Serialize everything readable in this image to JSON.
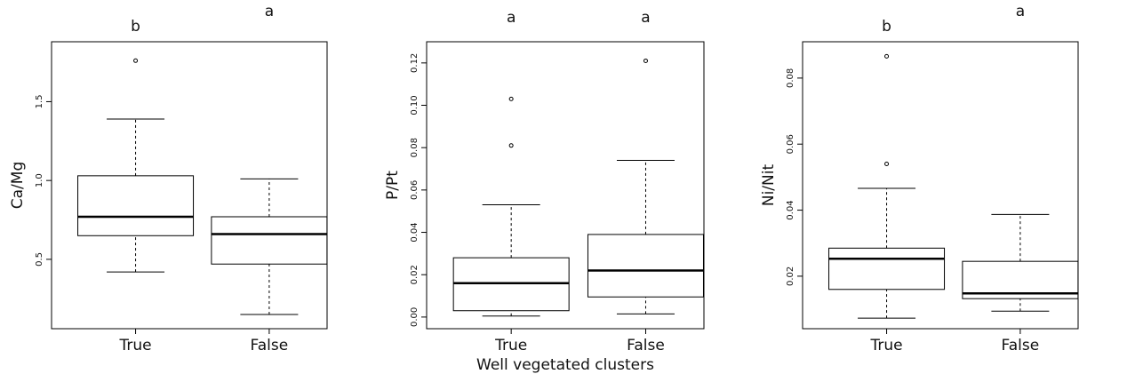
{
  "chart_data": [
    {
      "type": "box",
      "ylabel": "Ca/Mg",
      "categories": [
        "True",
        "False"
      ],
      "annotations": [
        "b",
        "a"
      ],
      "boxes": [
        {
          "min": 0.42,
          "q1": 0.65,
          "median": 0.77,
          "q3": 1.03,
          "max": 1.39,
          "outliers": [
            1.76
          ]
        },
        {
          "min": 0.15,
          "q1": 0.47,
          "median": 0.66,
          "q3": 0.77,
          "max": 1.01,
          "outliers": []
        }
      ],
      "ylim": [
        0.06,
        1.88
      ],
      "yticks": [
        0.5,
        {
          "value": 1,
          "label": "1.0"
        },
        1.5
      ]
    },
    {
      "type": "box",
      "ylabel": "P/Pt",
      "xlabel": "Well vegetated clusters",
      "categories": [
        "True",
        "False"
      ],
      "annotations": [
        "a",
        "a"
      ],
      "boxes": [
        {
          "min": 0.0005,
          "q1": 0.003,
          "median": 0.016,
          "q3": 0.028,
          "max": 0.053,
          "outliers": [
            0.081,
            0.103
          ]
        },
        {
          "min": 0.0015,
          "q1": 0.0095,
          "median": 0.022,
          "q3": 0.039,
          "max": 0.074,
          "outliers": [
            0.121
          ]
        }
      ],
      "ylim": [
        -0.0055,
        0.13
      ],
      "yticks": [
        {
          "value": 0,
          "label": "0.00"
        },
        0.02,
        0.04,
        0.06,
        0.08,
        {
          "value": 0.1,
          "label": "0.10"
        },
        0.12
      ]
    },
    {
      "type": "box",
      "ylabel": "Ni/Nit",
      "categories": [
        "True",
        "False"
      ],
      "annotations": [
        "b",
        "a"
      ],
      "boxes": [
        {
          "min": 0.0073,
          "q1": 0.016,
          "median": 0.0253,
          "q3": 0.0285,
          "max": 0.0466,
          "outliers": [
            0.054,
            0.0866
          ]
        },
        {
          "min": 0.0094,
          "q1": 0.0132,
          "median": 0.0148,
          "q3": 0.0245,
          "max": 0.0387,
          "outliers": []
        }
      ],
      "ylim": [
        0.0041,
        0.091
      ],
      "yticks": [
        0.02,
        0.04,
        0.06,
        0.08
      ]
    }
  ]
}
